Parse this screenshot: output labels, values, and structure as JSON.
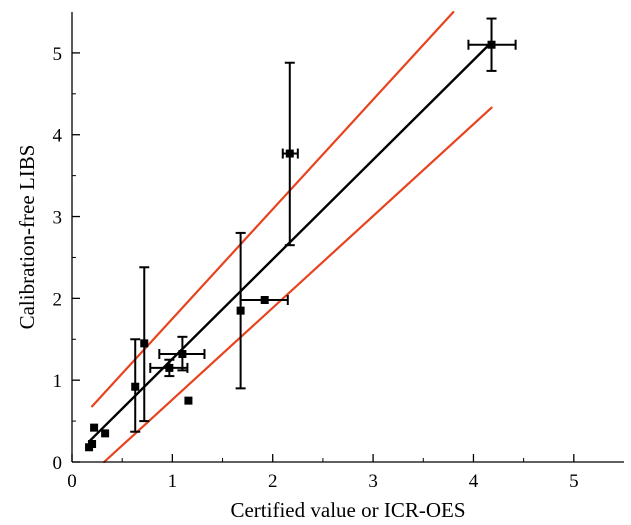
{
  "chart_data": {
    "type": "scatter",
    "xlabel": "Certified value or ICR-OES",
    "ylabel": "Calibration-free LIBS",
    "xlim": [
      0,
      5.5
    ],
    "ylim": [
      0,
      5.5
    ],
    "xticks": [
      0,
      1,
      2,
      3,
      4,
      5
    ],
    "yticks": [
      0,
      1,
      2,
      3,
      4,
      5
    ],
    "x_tick_labels": [
      "0",
      "1",
      "2",
      "3",
      "4",
      "5"
    ],
    "y_tick_labels": [
      "0",
      "1",
      "2",
      "3",
      "4",
      "5"
    ],
    "grid": false,
    "colors": {
      "points": "#000000",
      "fit_line": "#000000",
      "band": "#e8431f"
    },
    "points": [
      {
        "x": 0.17,
        "y": 0.18
      },
      {
        "x": 0.2,
        "y": 0.22
      },
      {
        "x": 0.22,
        "y": 0.42
      },
      {
        "x": 0.33,
        "y": 0.35
      },
      {
        "x": 0.63,
        "y": 0.92,
        "y_low": 0.37,
        "y_high": 1.5
      },
      {
        "x": 0.72,
        "y": 1.45,
        "y_low": 0.5,
        "y_high": 2.38
      },
      {
        "x": 0.97,
        "y": 1.15,
        "y_low": 1.05,
        "y_high": 1.25,
        "x_low": 0.78,
        "x_high": 1.15
      },
      {
        "x": 1.1,
        "y": 1.32,
        "y_low": 1.12,
        "y_high": 1.53,
        "x_low": 0.87,
        "x_high": 1.32
      },
      {
        "x": 1.16,
        "y": 0.75
      },
      {
        "x": 1.68,
        "y": 1.85,
        "y_low": 0.9,
        "y_high": 2.8
      },
      {
        "x": 1.92,
        "y": 1.98,
        "x_low": 1.68,
        "x_high": 2.15
      },
      {
        "x": 2.17,
        "y": 3.77,
        "y_low": 2.65,
        "y_high": 4.88,
        "x_low": 2.1,
        "x_high": 2.25
      },
      {
        "x": 4.18,
        "y": 5.1,
        "y_low": 4.78,
        "y_high": 5.42,
        "x_low": 3.95,
        "x_high": 4.42
      }
    ],
    "fit_line": {
      "x": [
        0.17,
        4.18
      ],
      "y": [
        0.25,
        5.13
      ]
    },
    "band_upper": {
      "x": [
        0.2,
        3.8
      ],
      "y": [
        0.68,
        5.55
      ]
    },
    "band_lower": {
      "x": [
        0.32,
        4.18
      ],
      "y": [
        0.0,
        4.33
      ]
    }
  }
}
